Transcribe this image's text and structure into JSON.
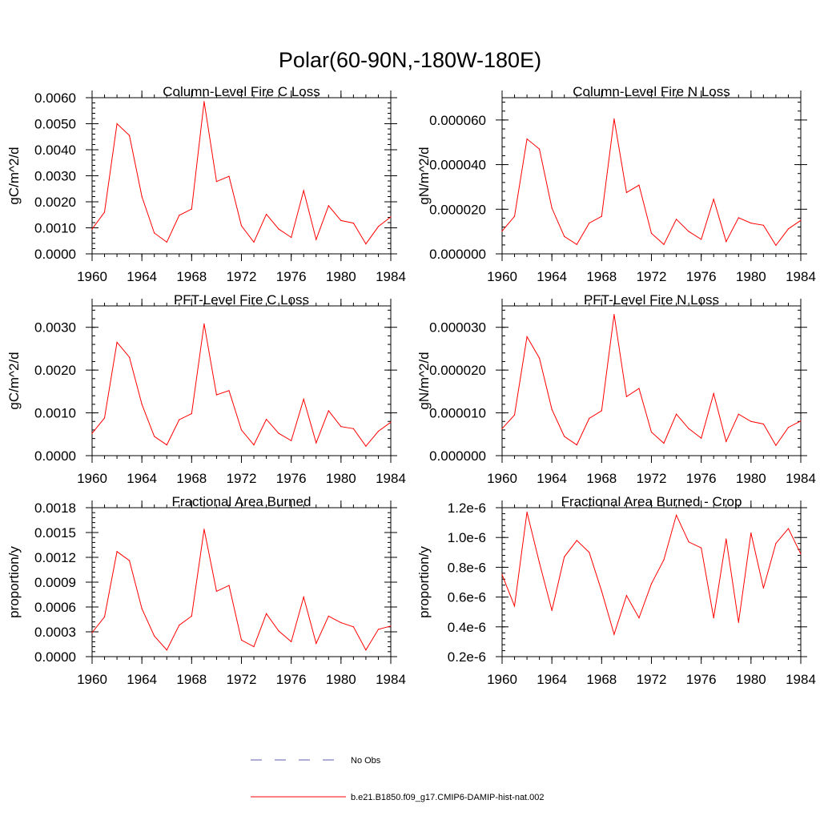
{
  "figure": {
    "title": "Polar(60-90N,-180W-180E)"
  },
  "legend": {
    "entries": [
      {
        "label": "No Obs",
        "style": "dashed",
        "color": "#5b5bb0"
      },
      {
        "label": "b.e21.B1850.f09_g17.CMIP6-DAMIP-hist-nat.002",
        "style": "solid",
        "color": "#ff0000"
      }
    ]
  },
  "chart_data": [
    {
      "type": "line",
      "title": "Column-Level Fire C Loss",
      "ylabel": "gC/m^2/d",
      "xlabel": "",
      "xlim": [
        1960,
        1984
      ],
      "ylim": [
        0,
        0.006
      ],
      "xticks": [
        1960,
        1964,
        1968,
        1972,
        1976,
        1980,
        1984
      ],
      "xtick_labels": [
        "1960",
        "1964",
        "1968",
        "1972",
        "1976",
        "1980",
        "1984"
      ],
      "yticks": [
        0,
        0.001,
        0.002,
        0.003,
        0.004,
        0.005,
        0.006
      ],
      "ytick_labels": [
        "0.0000",
        "0.0010",
        "0.0020",
        "0.0030",
        "0.0040",
        "0.0050",
        "0.0060"
      ],
      "x": [
        1960,
        1961,
        1962,
        1963,
        1964,
        1965,
        1966,
        1967,
        1968,
        1969,
        1970,
        1971,
        1972,
        1973,
        1974,
        1975,
        1976,
        1977,
        1978,
        1979,
        1980,
        1981,
        1982,
        1983,
        1984
      ],
      "series": [
        {
          "color": "#ff0000",
          "values": [
            0.00095,
            0.0016,
            0.005,
            0.00455,
            0.0022,
            0.0008,
            0.00045,
            0.00148,
            0.00172,
            0.00585,
            0.00278,
            0.00298,
            0.00108,
            0.00045,
            0.00152,
            0.00095,
            0.00063,
            0.00243,
            0.00055,
            0.00185,
            0.00128,
            0.00118,
            0.00038,
            0.00105,
            0.00142
          ]
        }
      ]
    },
    {
      "type": "line",
      "title": "Column-Level Fire N Loss",
      "ylabel": "gN/m^2/d",
      "xlabel": "",
      "xlim": [
        1960,
        1984
      ],
      "ylim": [
        0,
        7e-05
      ],
      "xticks": [
        1960,
        1964,
        1968,
        1972,
        1976,
        1980,
        1984
      ],
      "xtick_labels": [
        "1960",
        "1964",
        "1968",
        "1972",
        "1976",
        "1980",
        "1984"
      ],
      "yticks": [
        0,
        2e-05,
        4e-05,
        6e-05
      ],
      "ytick_labels": [
        "0.000000",
        "0.000020",
        "0.000040",
        "0.000060"
      ],
      "x": [
        1960,
        1961,
        1962,
        1963,
        1964,
        1965,
        1966,
        1967,
        1968,
        1969,
        1970,
        1971,
        1972,
        1973,
        1974,
        1975,
        1976,
        1977,
        1978,
        1979,
        1980,
        1981,
        1982,
        1983,
        1984
      ],
      "series": [
        {
          "color": "#ff0000",
          "values": [
            1.02e-05,
            1.68e-05,
            5.15e-05,
            4.7e-05,
            2.05e-05,
            7.8e-06,
            4.2e-06,
            1.38e-05,
            1.68e-05,
            6.05e-05,
            2.75e-05,
            3.08e-05,
            9.2e-06,
            4.2e-06,
            1.55e-05,
            1e-05,
            6.5e-06,
            2.45e-05,
            5.5e-06,
            1.62e-05,
            1.38e-05,
            1.28e-05,
            3.8e-06,
            1.12e-05,
            1.5e-05
          ]
        }
      ]
    },
    {
      "type": "line",
      "title": "PFT-Level Fire C Loss",
      "ylabel": "gC/m^2/d",
      "xlabel": "",
      "xlim": [
        1960,
        1984
      ],
      "ylim": [
        0,
        0.0035
      ],
      "xticks": [
        1960,
        1964,
        1968,
        1972,
        1976,
        1980,
        1984
      ],
      "xtick_labels": [
        "1960",
        "1964",
        "1968",
        "1972",
        "1976",
        "1980",
        "1984"
      ],
      "yticks": [
        0,
        0.001,
        0.002,
        0.003
      ],
      "ytick_labels": [
        "0.0000",
        "0.0010",
        "0.0020",
        "0.0030"
      ],
      "x": [
        1960,
        1961,
        1962,
        1963,
        1964,
        1965,
        1966,
        1967,
        1968,
        1969,
        1970,
        1971,
        1972,
        1973,
        1974,
        1975,
        1976,
        1977,
        1978,
        1979,
        1980,
        1981,
        1982,
        1983,
        1984
      ],
      "series": [
        {
          "color": "#ff0000",
          "values": [
            0.00052,
            0.00088,
            0.00265,
            0.0023,
            0.0012,
            0.00045,
            0.00025,
            0.00084,
            0.00098,
            0.00308,
            0.00142,
            0.00152,
            0.0006,
            0.00025,
            0.00085,
            0.00052,
            0.00035,
            0.00132,
            0.0003,
            0.00105,
            0.00068,
            0.00063,
            0.00022,
            0.00057,
            0.00078
          ]
        }
      ]
    },
    {
      "type": "line",
      "title": "PFT-Level Fire N Loss",
      "ylabel": "gN/m^2/d",
      "xlabel": "",
      "xlim": [
        1960,
        1984
      ],
      "ylim": [
        0,
        3.5e-05
      ],
      "xticks": [
        1960,
        1964,
        1968,
        1972,
        1976,
        1980,
        1984
      ],
      "xtick_labels": [
        "1960",
        "1964",
        "1968",
        "1972",
        "1976",
        "1980",
        "1984"
      ],
      "yticks": [
        0,
        1e-05,
        2e-05,
        3e-05
      ],
      "ytick_labels": [
        "0.000000",
        "0.000010",
        "0.000020",
        "0.000030"
      ],
      "x": [
        1960,
        1961,
        1962,
        1963,
        1964,
        1965,
        1966,
        1967,
        1968,
        1969,
        1970,
        1971,
        1972,
        1973,
        1974,
        1975,
        1976,
        1977,
        1978,
        1979,
        1980,
        1981,
        1982,
        1983,
        1984
      ],
      "series": [
        {
          "color": "#ff0000",
          "values": [
            6.3e-06,
            9.5e-06,
            2.78e-05,
            2.28e-05,
            1.08e-05,
            4.5e-06,
            2.5e-06,
            8.7e-06,
            1.05e-05,
            3.3e-05,
            1.38e-05,
            1.57e-05,
            5.5e-06,
            2.9e-06,
            9.7e-06,
            6.3e-06,
            4.1e-06,
            1.45e-05,
            3.3e-06,
            9.7e-06,
            8e-06,
            7.4e-06,
            2.4e-06,
            6.6e-06,
            8.1e-06
          ]
        }
      ]
    },
    {
      "type": "line",
      "title": "Fractional Area Burned",
      "ylabel": "proportion/y",
      "xlabel": "",
      "xlim": [
        1960,
        1984
      ],
      "ylim": [
        0,
        0.0018
      ],
      "xticks": [
        1960,
        1964,
        1968,
        1972,
        1976,
        1980,
        1984
      ],
      "xtick_labels": [
        "1960",
        "1964",
        "1968",
        "1972",
        "1976",
        "1980",
        "1984"
      ],
      "yticks": [
        0,
        0.0003,
        0.0006,
        0.0009,
        0.0012,
        0.0015,
        0.0018
      ],
      "ytick_labels": [
        "0.0000",
        "0.0003",
        "0.0006",
        "0.0009",
        "0.0012",
        "0.0015",
        "0.0018"
      ],
      "x": [
        1960,
        1961,
        1962,
        1963,
        1964,
        1965,
        1966,
        1967,
        1968,
        1969,
        1970,
        1971,
        1972,
        1973,
        1974,
        1975,
        1976,
        1977,
        1978,
        1979,
        1980,
        1981,
        1982,
        1983,
        1984
      ],
      "series": [
        {
          "color": "#ff0000",
          "values": [
            0.00029,
            0.00048,
            0.00127,
            0.00116,
            0.00058,
            0.00025,
            8e-05,
            0.00038,
            0.00049,
            0.00154,
            0.00079,
            0.00086,
            0.0002,
            0.00012,
            0.00052,
            0.00031,
            0.00018,
            0.00072,
            0.00016,
            0.00049,
            0.00041,
            0.00036,
            8e-05,
            0.00033,
            0.00037
          ]
        }
      ]
    },
    {
      "type": "line",
      "title": "Fractional Area Burned - Crop",
      "ylabel": "proportion/y",
      "xlabel": "",
      "xlim": [
        1960,
        1984
      ],
      "ylim": [
        2e-07,
        1.2e-06
      ],
      "xticks": [
        1960,
        1964,
        1968,
        1972,
        1976,
        1980,
        1984
      ],
      "xtick_labels": [
        "1960",
        "1964",
        "1968",
        "1972",
        "1976",
        "1980",
        "1984"
      ],
      "yticks": [
        2e-07,
        4e-07,
        6e-07,
        8e-07,
        1e-06,
        1.2e-06
      ],
      "ytick_labels": [
        "0.2e-6",
        "0.4e-6",
        "0.6e-6",
        "0.8e-6",
        "1.0e-6",
        "1.2e-6"
      ],
      "x": [
        1960,
        1961,
        1962,
        1963,
        1964,
        1965,
        1966,
        1967,
        1968,
        1969,
        1970,
        1971,
        1972,
        1973,
        1974,
        1975,
        1976,
        1977,
        1978,
        1979,
        1980,
        1981,
        1982,
        1983,
        1984
      ],
      "series": [
        {
          "color": "#ff0000",
          "values": [
            7.5e-07,
            5.4e-07,
            1.17e-06,
            8.3e-07,
            5.1e-07,
            8.7e-07,
            9.8e-07,
            9e-07,
            6.4e-07,
            3.5e-07,
            6.1e-07,
            4.6e-07,
            6.9e-07,
            8.5e-07,
            1.15e-06,
            9.7e-07,
            9.3e-07,
            4.6e-07,
            9.9e-07,
            4.3e-07,
            1.03e-06,
            6.6e-07,
            9.6e-07,
            1.06e-06,
            8.9e-07
          ]
        }
      ]
    }
  ]
}
